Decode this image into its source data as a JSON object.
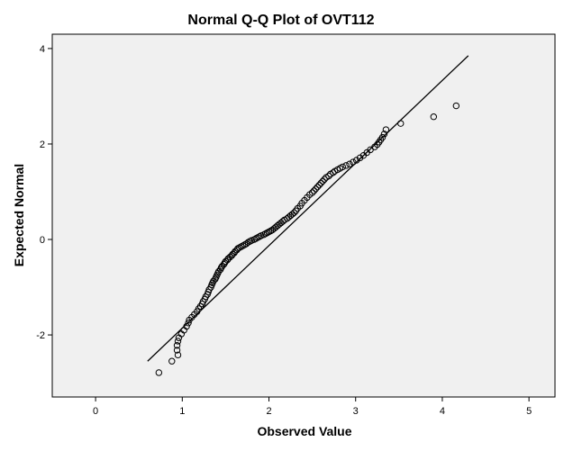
{
  "colors": {
    "plot_bg": "#f0f0f0",
    "marker_stroke": "#000000",
    "line": "#000000"
  },
  "chart_data": {
    "type": "scatter",
    "title": "Normal Q-Q Plot of OVT112",
    "xlabel": "Observed Value",
    "ylabel": "Expected Normal",
    "xlim": [
      -0.5,
      5.3
    ],
    "ylim": [
      -3.3,
      4.3
    ],
    "x_ticks": [
      0,
      1,
      2,
      3,
      4,
      5
    ],
    "y_ticks": [
      -2,
      0,
      2,
      4
    ],
    "grid": false,
    "marker": "open-circle",
    "reference_line": {
      "from": [
        0.6,
        -2.55
      ],
      "to": [
        4.3,
        3.85
      ]
    },
    "notable_points": [
      {
        "x": 0.73,
        "y": -2.79
      },
      {
        "x": 0.88,
        "y": -2.55
      },
      {
        "x": 3.52,
        "y": 2.43
      },
      {
        "x": 3.9,
        "y": 2.57
      },
      {
        "x": 4.16,
        "y": 2.8
      }
    ],
    "points_x": [
      0.95,
      0.94,
      0.94,
      0.95,
      0.96,
      0.99,
      1.02,
      1.05,
      1.07,
      1.08,
      1.11,
      1.14,
      1.17,
      1.19,
      1.21,
      1.23,
      1.24,
      1.26,
      1.27,
      1.29,
      1.3,
      1.31,
      1.33,
      1.34,
      1.35,
      1.36,
      1.38,
      1.39,
      1.4,
      1.41,
      1.42,
      1.44,
      1.45,
      1.46,
      1.48,
      1.49,
      1.5,
      1.52,
      1.53,
      1.55,
      1.57,
      1.58,
      1.6,
      1.61,
      1.63,
      1.64,
      1.66,
      1.68,
      1.7,
      1.72,
      1.74,
      1.76,
      1.78,
      1.8,
      1.83,
      1.85,
      1.87,
      1.89,
      1.91,
      1.94,
      1.96,
      1.98,
      2.0,
      2.02,
      2.04,
      2.06,
      2.08,
      2.1,
      2.12,
      2.14,
      2.16,
      2.18,
      2.21,
      2.23,
      2.25,
      2.27,
      2.29,
      2.31,
      2.33,
      2.36,
      2.38,
      2.41,
      2.44,
      2.47,
      2.5,
      2.52,
      2.54,
      2.56,
      2.58,
      2.6,
      2.62,
      2.64,
      2.66,
      2.69,
      2.71,
      2.74,
      2.76,
      2.79,
      2.82,
      2.85,
      2.89,
      2.93,
      2.97,
      3.01,
      3.05,
      3.09,
      3.13,
      3.17,
      3.22,
      3.25,
      3.27,
      3.29,
      3.31,
      3.33,
      3.35
    ],
    "points_y": [
      -2.42,
      -2.32,
      -2.22,
      -2.13,
      -2.06,
      -1.98,
      -1.9,
      -1.82,
      -1.75,
      -1.69,
      -1.63,
      -1.57,
      -1.51,
      -1.45,
      -1.4,
      -1.35,
      -1.3,
      -1.25,
      -1.2,
      -1.15,
      -1.1,
      -1.05,
      -1.0,
      -0.95,
      -0.91,
      -0.87,
      -0.83,
      -0.79,
      -0.75,
      -0.71,
      -0.67,
      -0.63,
      -0.59,
      -0.56,
      -0.52,
      -0.49,
      -0.46,
      -0.43,
      -0.4,
      -0.37,
      -0.34,
      -0.31,
      -0.28,
      -0.25,
      -0.22,
      -0.19,
      -0.17,
      -0.15,
      -0.13,
      -0.11,
      -0.09,
      -0.06,
      -0.04,
      -0.02,
      0.0,
      0.02,
      0.04,
      0.06,
      0.08,
      0.1,
      0.12,
      0.14,
      0.16,
      0.18,
      0.2,
      0.23,
      0.26,
      0.29,
      0.32,
      0.35,
      0.38,
      0.41,
      0.44,
      0.47,
      0.5,
      0.53,
      0.56,
      0.6,
      0.65,
      0.7,
      0.76,
      0.82,
      0.88,
      0.94,
      0.98,
      1.02,
      1.06,
      1.1,
      1.14,
      1.18,
      1.22,
      1.26,
      1.3,
      1.33,
      1.37,
      1.4,
      1.43,
      1.46,
      1.49,
      1.52,
      1.55,
      1.58,
      1.62,
      1.66,
      1.71,
      1.76,
      1.82,
      1.88,
      1.94,
      1.99,
      2.04,
      2.09,
      2.14,
      2.21,
      2.3
    ]
  }
}
